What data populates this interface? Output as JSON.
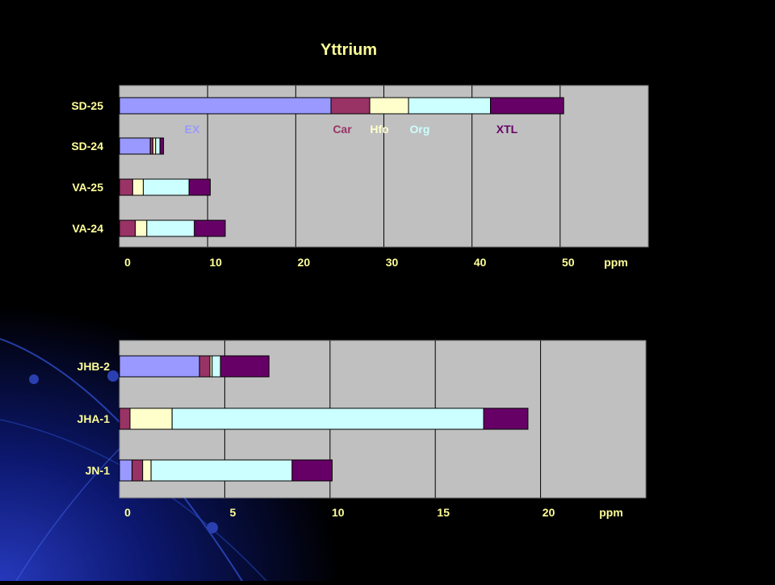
{
  "title": "Yttrium",
  "colors": {
    "EX": "#9999ff",
    "Car": "#993366",
    "Hfo": "#ffffcc",
    "Org": "#ccffff",
    "XTL": "#660066",
    "plot_bg": "#c0c0c0",
    "page_bg": "#000000",
    "title_text": "#ffff99",
    "label_text": "#ffff99"
  },
  "chart_data": [
    {
      "type": "bar",
      "orientation": "horizontal",
      "stacked": true,
      "categories": [
        "SD-25",
        "SD-24",
        "VA-25",
        "VA-24"
      ],
      "series": [
        {
          "name": "EX",
          "values": [
            24,
            3.5,
            0,
            0
          ]
        },
        {
          "name": "Car",
          "values": [
            4.4,
            0.3,
            1.5,
            1.8
          ]
        },
        {
          "name": "Hfo",
          "values": [
            4.4,
            0.3,
            1.2,
            1.3
          ]
        },
        {
          "name": "Org",
          "values": [
            9.3,
            0.5,
            5.2,
            5.4
          ]
        },
        {
          "name": "XTL",
          "values": [
            8.3,
            0.4,
            2.4,
            3.5
          ]
        }
      ],
      "xlim": [
        0,
        60
      ],
      "x_ticks": [
        "0",
        "10",
        "20",
        "30",
        "40",
        "50"
      ],
      "x_unit": "ppm",
      "grid": true,
      "legend": [
        "EX",
        "Car",
        "Hfo",
        "Org",
        "XTL"
      ],
      "legend_placement": "inside, between SD-25 and SD-24 rows"
    },
    {
      "type": "bar",
      "orientation": "horizontal",
      "stacked": true,
      "categories": [
        "JHB-2",
        "JHA-1",
        "JN-1"
      ],
      "series": [
        {
          "name": "EX",
          "values": [
            3.8,
            0,
            0.6
          ]
        },
        {
          "name": "Car",
          "values": [
            0.5,
            0.5,
            0.5
          ]
        },
        {
          "name": "Hfo",
          "values": [
            0.1,
            2.0,
            0.4
          ]
        },
        {
          "name": "Org",
          "values": [
            0.4,
            14.8,
            6.7
          ]
        },
        {
          "name": "XTL",
          "values": [
            2.3,
            2.1,
            1.9
          ]
        }
      ],
      "xlim": [
        0,
        25
      ],
      "x_ticks": [
        "0",
        "5",
        "10",
        "15",
        "20"
      ],
      "x_unit": "ppm",
      "grid": true
    }
  ]
}
